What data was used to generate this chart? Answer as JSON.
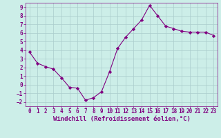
{
  "x": [
    0,
    1,
    2,
    3,
    4,
    5,
    6,
    7,
    8,
    9,
    10,
    11,
    12,
    13,
    14,
    15,
    16,
    17,
    18,
    19,
    20,
    21,
    22,
    23
  ],
  "y": [
    3.8,
    2.5,
    2.1,
    1.8,
    0.8,
    -0.3,
    -0.4,
    -1.8,
    -1.5,
    -0.8,
    1.5,
    4.2,
    5.5,
    6.5,
    7.5,
    9.2,
    8.0,
    6.8,
    6.5,
    6.2,
    6.1,
    6.1,
    6.1,
    5.7
  ],
  "line_color": "#800080",
  "marker": "D",
  "marker_size": 2.2,
  "xlim": [
    -0.5,
    23.5
  ],
  "ylim": [
    -2.5,
    9.5
  ],
  "yticks": [
    -2,
    -1,
    0,
    1,
    2,
    3,
    4,
    5,
    6,
    7,
    8,
    9
  ],
  "xticks": [
    0,
    1,
    2,
    3,
    4,
    5,
    6,
    7,
    8,
    9,
    10,
    11,
    12,
    13,
    14,
    15,
    16,
    17,
    18,
    19,
    20,
    21,
    22,
    23
  ],
  "xlabel": "Windchill (Refroidissement éolien,°C)",
  "bg_color": "#cceee8",
  "grid_color": "#aacccc",
  "text_color": "#800080",
  "tick_label_fontsize": 5.5,
  "xlabel_fontsize": 6.5
}
